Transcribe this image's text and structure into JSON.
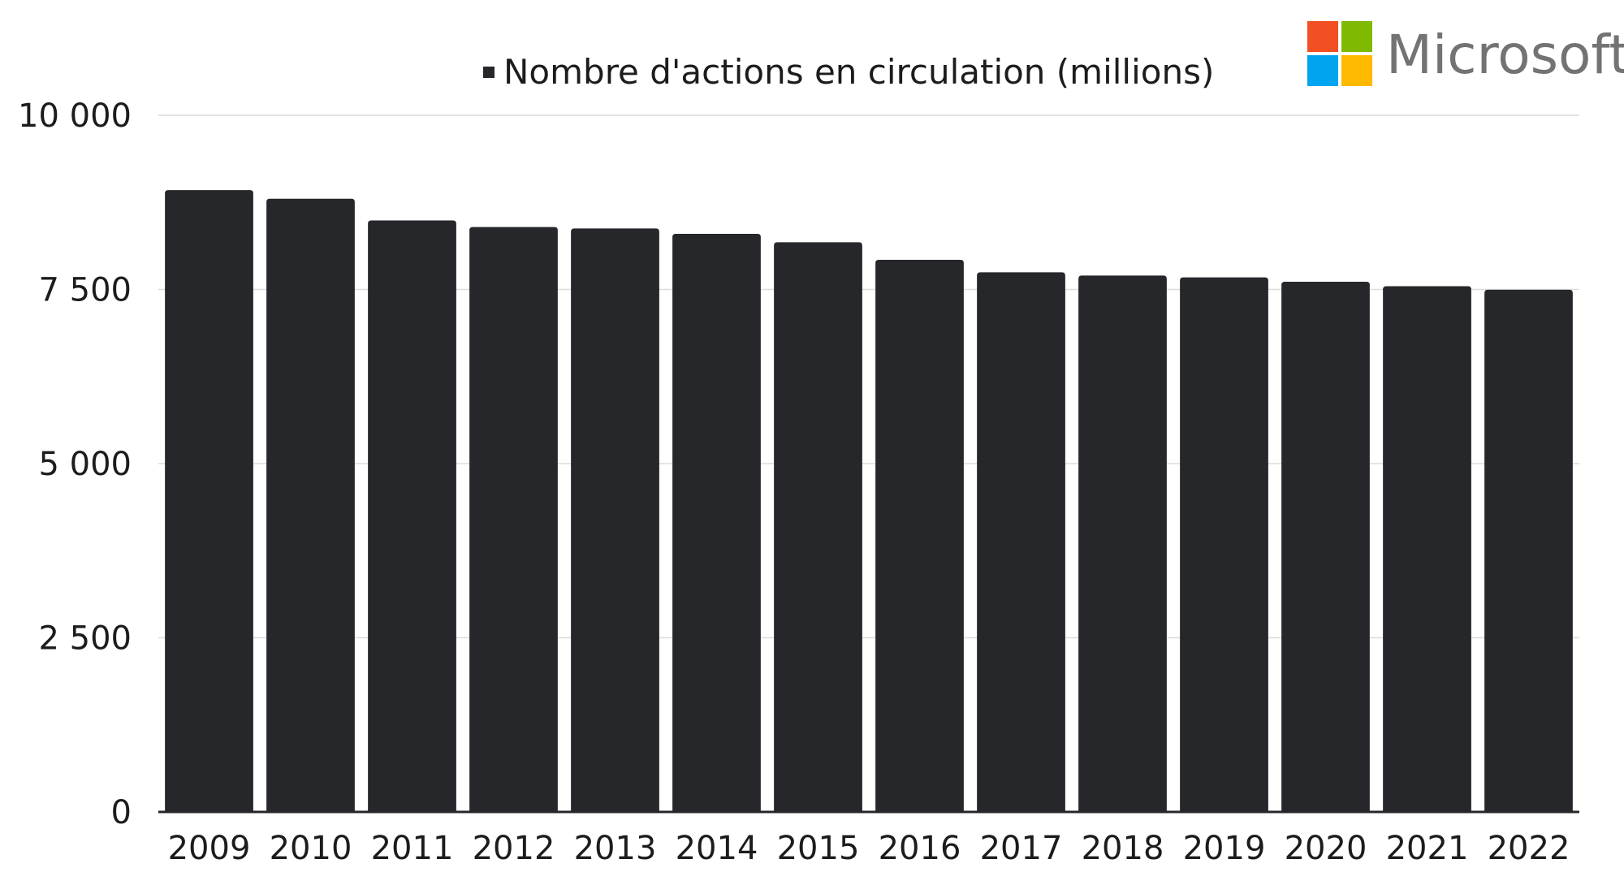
{
  "brand": {
    "name": "Microsoft",
    "logo_colors": [
      "#f25022",
      "#7fba00",
      "#00a4ef",
      "#ffb900"
    ],
    "text_color": "#737373"
  },
  "chart_data": {
    "type": "bar",
    "legend": {
      "label": "Nombre d'actions en circulation (millions)",
      "position": "top"
    },
    "categories": [
      "2009",
      "2010",
      "2011",
      "2012",
      "2013",
      "2014",
      "2015",
      "2016",
      "2017",
      "2018",
      "2019",
      "2020",
      "2021",
      "2022"
    ],
    "series": [
      {
        "name": "Nombre d'actions en circulation (millions)",
        "values": [
          8927,
          8803,
          8490,
          8396,
          8375,
          8299,
          8177,
          7925,
          7746,
          7700,
          7673,
          7610,
          7547,
          7496
        ],
        "color": "#26272b"
      }
    ],
    "ylim": [
      0,
      10000
    ],
    "yticks": [
      0,
      2500,
      5000,
      7500,
      10000
    ],
    "ytick_labels": [
      "0",
      "2 500",
      "5 000",
      "7 500",
      "10 000"
    ],
    "grid": true,
    "xlabel": "",
    "ylabel": ""
  }
}
